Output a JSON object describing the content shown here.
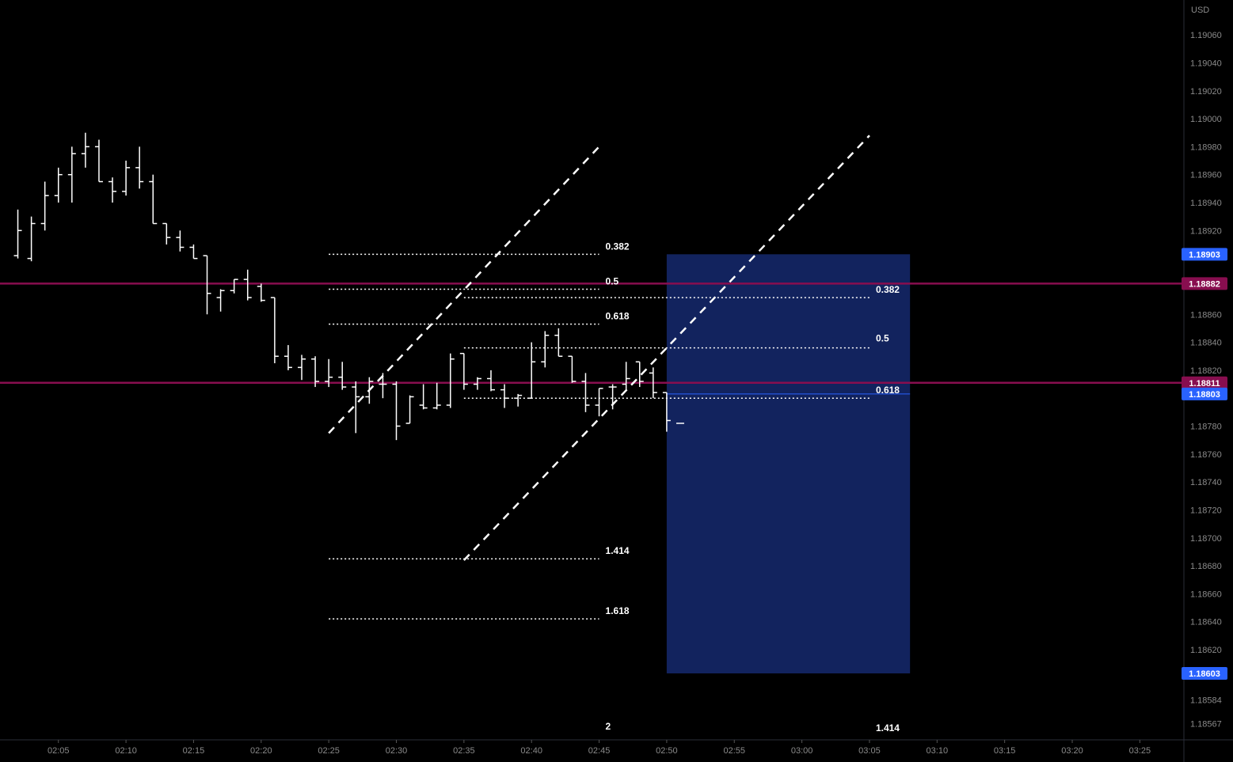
{
  "currency_label": "USD",
  "chart_data": {
    "type": "ohlc",
    "title": "",
    "xlabel": "",
    "ylabel": "",
    "grid": false,
    "ylim": [
      1.18556,
      1.19085
    ],
    "x_time_range": [
      "02:02",
      "03:28"
    ],
    "x_ticks": [
      "02:05",
      "02:10",
      "02:15",
      "02:20",
      "02:25",
      "02:30",
      "02:35",
      "02:40",
      "02:45",
      "02:50",
      "02:55",
      "03:00",
      "03:05",
      "03:10",
      "03:15",
      "03:20",
      "03:25"
    ],
    "y_ticks": [
      "1.19060",
      "1.19040",
      "1.19020",
      "1.19000",
      "1.18980",
      "1.18960",
      "1.18940",
      "1.18920",
      "1.18860",
      "1.18840",
      "1.18820",
      "1.18780",
      "1.18760",
      "1.18740",
      "1.18720",
      "1.18700",
      "1.18680",
      "1.18660",
      "1.18640",
      "1.18620",
      "1.18584",
      "1.18567"
    ],
    "bars": [
      {
        "t": "02:02",
        "o": 1.18902,
        "h": 1.18935,
        "l": 1.189,
        "c": 1.1892
      },
      {
        "t": "02:03",
        "o": 1.189,
        "h": 1.1893,
        "l": 1.18898,
        "c": 1.18925
      },
      {
        "t": "02:04",
        "o": 1.18925,
        "h": 1.18955,
        "l": 1.1892,
        "c": 1.18945
      },
      {
        "t": "02:05",
        "o": 1.18945,
        "h": 1.18965,
        "l": 1.1894,
        "c": 1.1896
      },
      {
        "t": "02:06",
        "o": 1.1896,
        "h": 1.1898,
        "l": 1.1894,
        "c": 1.18975
      },
      {
        "t": "02:07",
        "o": 1.18975,
        "h": 1.1899,
        "l": 1.18965,
        "c": 1.1898
      },
      {
        "t": "02:08",
        "o": 1.1898,
        "h": 1.18985,
        "l": 1.18955,
        "c": 1.18955
      },
      {
        "t": "02:09",
        "o": 1.18955,
        "h": 1.18958,
        "l": 1.1894,
        "c": 1.18948
      },
      {
        "t": "02:10",
        "o": 1.18948,
        "h": 1.1897,
        "l": 1.18945,
        "c": 1.18965
      },
      {
        "t": "02:11",
        "o": 1.18965,
        "h": 1.1898,
        "l": 1.1895,
        "c": 1.18955
      },
      {
        "t": "02:12",
        "o": 1.18955,
        "h": 1.1896,
        "l": 1.18925,
        "c": 1.18925
      },
      {
        "t": "02:13",
        "o": 1.18925,
        "h": 1.18925,
        "l": 1.1891,
        "c": 1.18915
      },
      {
        "t": "02:14",
        "o": 1.18915,
        "h": 1.1892,
        "l": 1.18905,
        "c": 1.18908
      },
      {
        "t": "02:15",
        "o": 1.18908,
        "h": 1.1891,
        "l": 1.189,
        "c": 1.189
      },
      {
        "t": "02:16",
        "o": 1.18902,
        "h": 1.18902,
        "l": 1.1886,
        "c": 1.18875
      },
      {
        "t": "02:17",
        "o": 1.18872,
        "h": 1.18878,
        "l": 1.18862,
        "c": 1.18877
      },
      {
        "t": "02:18",
        "o": 1.18877,
        "h": 1.18885,
        "l": 1.18875,
        "c": 1.18885
      },
      {
        "t": "02:19",
        "o": 1.18885,
        "h": 1.18892,
        "l": 1.1887,
        "c": 1.18872
      },
      {
        "t": "02:20",
        "o": 1.1888,
        "h": 1.18882,
        "l": 1.18869,
        "c": 1.1887
      },
      {
        "t": "02:21",
        "o": 1.18872,
        "h": 1.18872,
        "l": 1.18825,
        "c": 1.1883
      },
      {
        "t": "02:22",
        "o": 1.1883,
        "h": 1.18838,
        "l": 1.1882,
        "c": 1.18822
      },
      {
        "t": "02:23",
        "o": 1.18822,
        "h": 1.18831,
        "l": 1.18813,
        "c": 1.18828
      },
      {
        "t": "02:24",
        "o": 1.18828,
        "h": 1.1883,
        "l": 1.18808,
        "c": 1.18812
      },
      {
        "t": "02:25",
        "o": 1.18812,
        "h": 1.18828,
        "l": 1.18808,
        "c": 1.18815
      },
      {
        "t": "02:26",
        "o": 1.18815,
        "h": 1.18826,
        "l": 1.18806,
        "c": 1.18808
      },
      {
        "t": "02:27",
        "o": 1.18808,
        "h": 1.18812,
        "l": 1.18775,
        "c": 1.18801
      },
      {
        "t": "02:28",
        "o": 1.18801,
        "h": 1.18815,
        "l": 1.18796,
        "c": 1.18812
      },
      {
        "t": "02:29",
        "o": 1.1881,
        "h": 1.18818,
        "l": 1.188,
        "c": 1.1881
      },
      {
        "t": "02:30",
        "o": 1.1881,
        "h": 1.18812,
        "l": 1.1877,
        "c": 1.1878
      },
      {
        "t": "02:31",
        "o": 1.18782,
        "h": 1.18802,
        "l": 1.18782,
        "c": 1.18801
      },
      {
        "t": "02:32",
        "o": 1.18795,
        "h": 1.1881,
        "l": 1.18792,
        "c": 1.18793
      },
      {
        "t": "02:33",
        "o": 1.18793,
        "h": 1.18811,
        "l": 1.18792,
        "c": 1.18795
      },
      {
        "t": "02:34",
        "o": 1.18795,
        "h": 1.18832,
        "l": 1.18793,
        "c": 1.18828
      },
      {
        "t": "02:35",
        "o": 1.18832,
        "h": 1.18832,
        "l": 1.18806,
        "c": 1.1881
      },
      {
        "t": "02:36",
        "o": 1.1881,
        "h": 1.18815,
        "l": 1.18806,
        "c": 1.18814
      },
      {
        "t": "02:37",
        "o": 1.18814,
        "h": 1.1882,
        "l": 1.18805,
        "c": 1.18806
      },
      {
        "t": "02:38",
        "o": 1.18806,
        "h": 1.1881,
        "l": 1.18793,
        "c": 1.188
      },
      {
        "t": "02:39",
        "o": 1.188,
        "h": 1.18803,
        "l": 1.18794,
        "c": 1.18802
      },
      {
        "t": "02:40",
        "o": 1.188,
        "h": 1.1884,
        "l": 1.188,
        "c": 1.18826
      },
      {
        "t": "02:41",
        "o": 1.18826,
        "h": 1.18848,
        "l": 1.18822,
        "c": 1.18845
      },
      {
        "t": "02:42",
        "o": 1.18845,
        "h": 1.1885,
        "l": 1.1883,
        "c": 1.1883
      },
      {
        "t": "02:43",
        "o": 1.1883,
        "h": 1.1883,
        "l": 1.18811,
        "c": 1.18812
      },
      {
        "t": "02:44",
        "o": 1.18812,
        "h": 1.18818,
        "l": 1.1879,
        "c": 1.18795
      },
      {
        "t": "02:45",
        "o": 1.18795,
        "h": 1.18807,
        "l": 1.18787,
        "c": 1.18807
      },
      {
        "t": "02:46",
        "o": 1.18808,
        "h": 1.1881,
        "l": 1.18792,
        "c": 1.18808
      },
      {
        "t": "02:47",
        "o": 1.1881,
        "h": 1.18826,
        "l": 1.18806,
        "c": 1.18814
      },
      {
        "t": "02:48",
        "o": 1.18826,
        "h": 1.18826,
        "l": 1.18808,
        "c": 1.18812
      },
      {
        "t": "02:49",
        "o": 1.18818,
        "h": 1.18822,
        "l": 1.188,
        "c": 1.18804
      },
      {
        "t": "02:50",
        "o": 1.18804,
        "h": 1.18804,
        "l": 1.18776,
        "c": 1.18784
      },
      {
        "t": "02:51",
        "o": 1.18782,
        "h": 1.18782,
        "l": 1.18782,
        "c": 1.18782
      }
    ],
    "horizontal_lines": [
      {
        "price": 1.18882,
        "label": "1.18882",
        "color": "#880e4f"
      },
      {
        "price": 1.18811,
        "label": "1.18811",
        "color": "#880e4f"
      },
      {
        "price": 1.18803,
        "label": "1.18803",
        "color": "#2962ff"
      }
    ],
    "price_labels": [
      {
        "price": 1.18903,
        "label": "1.18903",
        "color": "#2962ff"
      },
      {
        "price": 1.18603,
        "label": "1.18603",
        "color": "#2962ff"
      }
    ],
    "zone": {
      "t_start": "02:50",
      "t_end": "03:08",
      "price_top": 1.18903,
      "price_bottom": 1.18603,
      "color": "#12235e"
    },
    "trend_lines": [
      {
        "t1": "02:25",
        "p1": 1.18775,
        "t2": "02:45",
        "p2": 1.1898
      },
      {
        "t1": "02:35",
        "p1": 1.18684,
        "t2": "03:05",
        "p2": 1.18988
      }
    ],
    "fib_levels": [
      {
        "group": "left",
        "t_start": "02:25",
        "t_end": "02:45",
        "levels": [
          {
            "ratio": "0.382",
            "price": 1.18903
          },
          {
            "ratio": "0.5",
            "price": 1.18878
          },
          {
            "ratio": "0.618",
            "price": 1.18853
          },
          {
            "ratio": "1.414",
            "price": 1.18685
          },
          {
            "ratio": "1.618",
            "price": 1.18642
          },
          {
            "ratio": "2",
            "price": 1.18561
          }
        ]
      },
      {
        "group": "right",
        "t_start": "02:35",
        "t_end": "03:05",
        "levels": [
          {
            "ratio": "0.382",
            "price": 1.18872
          },
          {
            "ratio": "0.5",
            "price": 1.18836
          },
          {
            "ratio": "0.618",
            "price": 1.188
          },
          {
            "ratio": "1.414",
            "price": 1.1856
          }
        ]
      }
    ]
  }
}
